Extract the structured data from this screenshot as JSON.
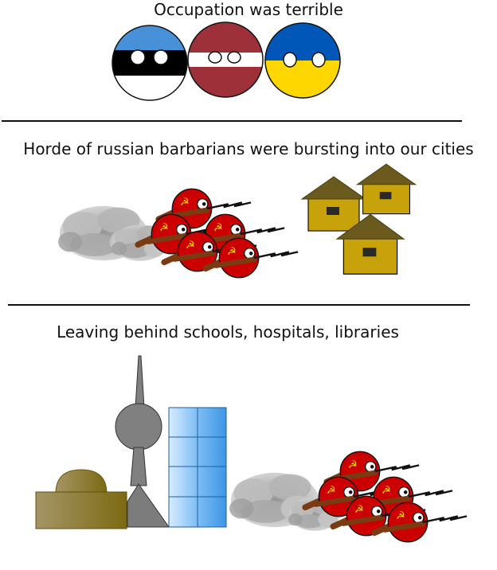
{
  "panels": [
    {
      "caption": "Occupation was terrible"
    },
    {
      "caption": "Horde of russian barbarians were bursting into our cities"
    },
    {
      "caption": "Leaving behind schools, hospitals, libraries"
    }
  ],
  "countryballs": {
    "estonia": {
      "colors": [
        "#4891d9",
        "#000000",
        "#ffffff"
      ]
    },
    "latvia": {
      "colors": [
        "#9e3039",
        "#ffffff",
        "#9e3039"
      ]
    },
    "ukraine": {
      "colors": [
        "#0057b7",
        "#ffd700"
      ]
    }
  },
  "soviet_ball": {
    "colors": [
      "#cc0000",
      "#ffd700"
    ],
    "gun_color": "#7a3b12"
  },
  "hut": {
    "roof_color": "#6b5a1e",
    "wall_color": "#c8a20a"
  },
  "buildings": {
    "dome_gradient": [
      "#a59566",
      "#7c6a12"
    ],
    "tower_color": "#808080",
    "glass_color": "#6fb4ef"
  }
}
